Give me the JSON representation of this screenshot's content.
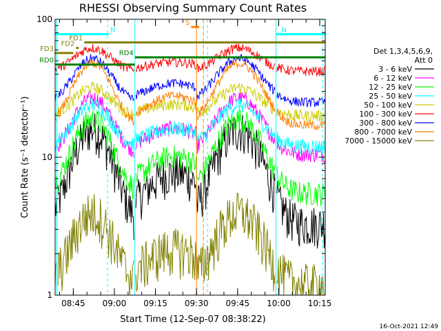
{
  "chart_data": {
    "type": "line",
    "title": "RHESSI Observing Summary Count Rates",
    "xlabel": "Start Time (12-Sep-07 08:38:22)",
    "ylabel": "Count Rate (s⁻¹ detector⁻¹)",
    "ylim": [
      1,
      100
    ],
    "yscale": "log",
    "y_ticks": [
      {
        "value": 1,
        "label": "1"
      },
      {
        "value": 10,
        "label": "10"
      },
      {
        "value": 100,
        "label": "100"
      }
    ],
    "x_range": [
      "08:38:22",
      "10:17:00"
    ],
    "x_ticks": [
      "08:45",
      "09:00",
      "09:15",
      "09:30",
      "09:45",
      "10:00",
      "10:15"
    ],
    "legend": {
      "header": [
        "Det 1,3,4,5,6,9,",
        "Att 0"
      ],
      "placement": "right"
    },
    "series": [
      {
        "name": "3 - 6 keV",
        "color": "#000000",
        "peak": 16,
        "base": 3.3,
        "noise": 0.35
      },
      {
        "name": "6 - 12 keV",
        "color": "#ff00ff",
        "peak": 27,
        "base": 10.5,
        "noise": 0.13
      },
      {
        "name": "12 - 25 keV",
        "color": "#00ff00",
        "peak": 19,
        "base": 5.5,
        "noise": 0.2
      },
      {
        "name": "25 - 50 keV",
        "color": "#00ffff",
        "peak": 24,
        "base": 12,
        "noise": 0.13
      },
      {
        "name": "50 - 100 keV",
        "color": "#cccc00",
        "peak": 32,
        "base": 20,
        "noise": 0.1
      },
      {
        "name": "100 - 300 keV",
        "color": "#ff0000",
        "peak": 62,
        "base": 42,
        "noise": 0.08
      },
      {
        "name": "300 - 800 keV",
        "color": "#0000ff",
        "peak": 52,
        "base": 25,
        "noise": 0.08
      },
      {
        "name": "800 - 7000 keV",
        "color": "#ff8000",
        "peak": 48,
        "base": 17,
        "noise": 0.08
      },
      {
        "name": "7000 - 15000 keV",
        "color": "#808000",
        "peak": 4,
        "base": 1.2,
        "noise": 0.4
      }
    ],
    "orbit_flags": [
      {
        "label": "N",
        "color": "#00ffff",
        "start": "08:38:22",
        "end": "08:58:00",
        "value": 78
      },
      {
        "label": "N",
        "color": "#00ffff",
        "start": "09:59:00",
        "end": "10:17:00",
        "value": 78
      },
      {
        "label": "S",
        "color": "#ff8000",
        "start": "09:28:00",
        "end": "09:31:00",
        "value": 88
      },
      {
        "label": "FD1",
        "color": "#808000",
        "start": "08:49:00",
        "end": "10:17:00",
        "value": 68
      },
      {
        "label": "FD2",
        "color": "#808000",
        "start": "08:46:00",
        "end": "08:47:00",
        "value": 62
      },
      {
        "label": "FD3",
        "color": "#808000",
        "start": "08:38:22",
        "end": "08:45:00",
        "value": 57
      },
      {
        "label": "RD0",
        "color": "#008000",
        "start": "08:38:22",
        "end": "09:07:30",
        "value": 47
      },
      {
        "label": "RD4",
        "color": "#008000",
        "start": "09:07:30",
        "end": "10:17:00",
        "value": 53
      }
    ],
    "eclipse_times": [
      "08:39:00",
      "09:07:30",
      "09:59:00"
    ],
    "saa_times": [
      "09:30:00",
      "09:32:30"
    ],
    "vertical_markers": [
      "08:57:30",
      "09:34:00",
      "10:16:00"
    ]
  },
  "timestamp": "16-Oct-2021 12:49"
}
